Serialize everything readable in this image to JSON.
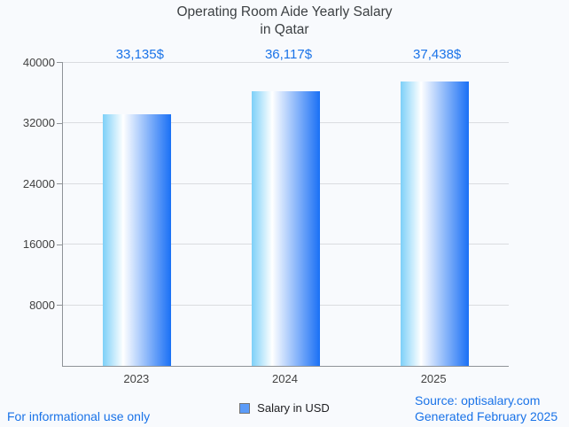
{
  "title": {
    "line1": "Operating Room Aide Yearly Salary",
    "line2": "in Qatar"
  },
  "chart_data": {
    "type": "bar",
    "title": "Operating Room Aide Yearly Salary in Qatar",
    "categories": [
      "2023",
      "2024",
      "2025"
    ],
    "values": [
      33135,
      36117,
      37438
    ],
    "value_labels": [
      "33,135$",
      "36,117$",
      "37,438$"
    ],
    "series_name": "Salary in USD",
    "xlabel": "",
    "ylabel": "",
    "ylim": [
      0,
      40000
    ],
    "yticks": [
      8000,
      16000,
      24000,
      32000,
      40000
    ],
    "ytick_labels": [
      "8000",
      "16000",
      "24000",
      "32000",
      "40000"
    ],
    "grid": true,
    "legend_position": "bottom"
  },
  "legend": {
    "label": "Salary in USD"
  },
  "footer": {
    "disclaimer": "For informational use only",
    "source": "Source: optisalary.com",
    "generated": "Generated February 2025"
  },
  "colors": {
    "accent_blue": "#1a73e8",
    "bar_gradient_left": "#7dd0f8",
    "bar_gradient_mid": "#ffffff",
    "bar_gradient_right": "#1a70f5",
    "gridline": "#dadce0",
    "axis": "#8f9398",
    "label_text": "#424242",
    "background": "#f8fafd",
    "legend_swatch": "#5b9bf8"
  }
}
